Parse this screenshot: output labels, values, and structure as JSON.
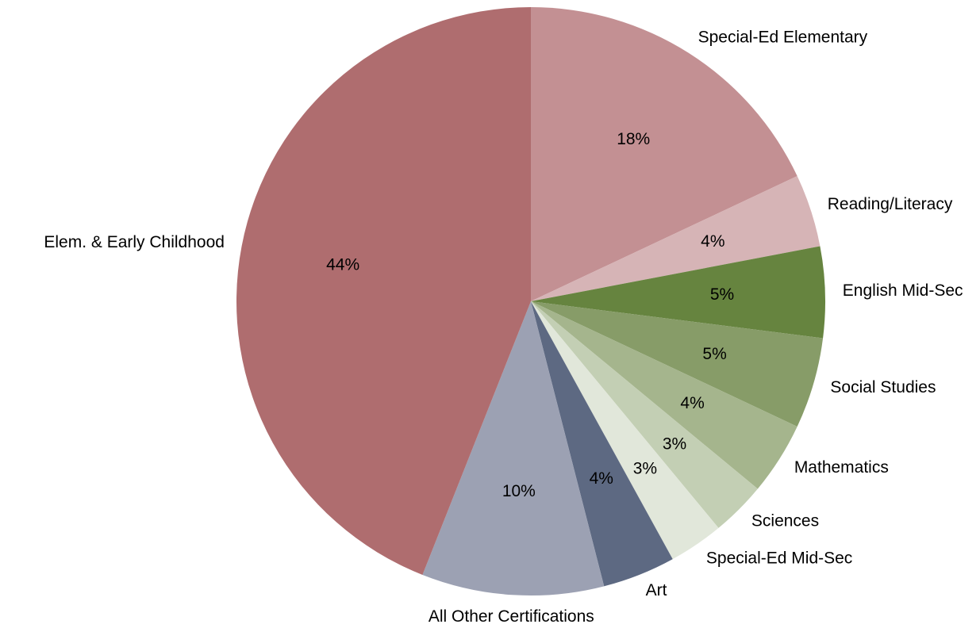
{
  "chart_data": {
    "type": "pie",
    "categories": [
      "Special-Ed Elementary",
      "Reading/Literacy",
      "English Mid-Sec",
      "Social Studies",
      "Mathematics",
      "Sciences",
      "Special-Ed Mid-Sec",
      "Art",
      "All Other Certifications",
      "Elem. & Early Childhood"
    ],
    "values": [
      18,
      4,
      5,
      5,
      4,
      3,
      3,
      4,
      10,
      44
    ],
    "value_labels": [
      "18%",
      "4%",
      "5%",
      "5%",
      "4%",
      "3%",
      "3%",
      "4%",
      "10%",
      "44%"
    ],
    "colors": [
      "#c39093",
      "#d6b4b6",
      "#66843f",
      "#879c68",
      "#a5b58d",
      "#c3cfb4",
      "#e1e7da",
      "#5d6982",
      "#9ca1b3",
      "#af6d6f"
    ]
  }
}
